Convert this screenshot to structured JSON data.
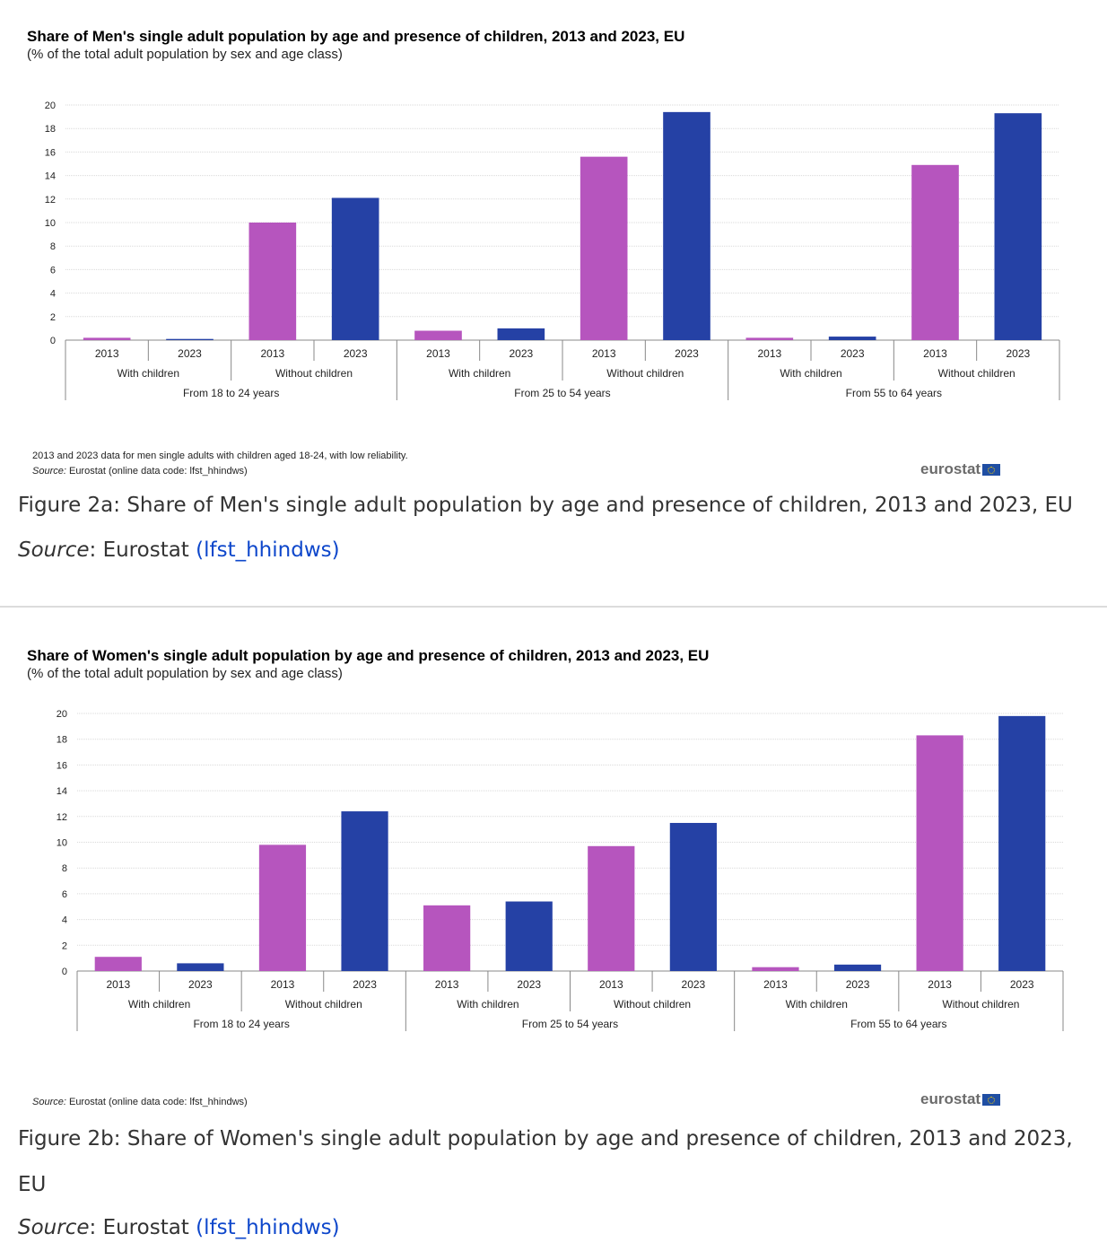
{
  "figures": [
    {
      "title": "Share of Men's single adult population by age and presence of children, 2013 and 2023, EU",
      "subtitle": "(% of the total adult population by sex and age class)",
      "note": "2013 and 2023 data for men single adults with children aged 18-24, with low reliability.",
      "source_label": "Source:",
      "source_text": " Eurostat (online data code: lfst_hhindws)",
      "logo": "eurostat",
      "caption": "Figure 2a: Share of Men's single adult population by age and presence of children, 2013 and 2023, EU",
      "caption_source_label": "Source",
      "caption_source_text": ": Eurostat ",
      "caption_source_link": "(lfst_hhindws)"
    },
    {
      "title": "Share of Women's single adult population by age and presence of children, 2013 and 2023, EU",
      "subtitle": "(% of the total adult population by sex and age class)",
      "note": "",
      "source_label": "Source:",
      "source_text": " Eurostat (online data code: lfst_hhindws)",
      "logo": "eurostat",
      "caption": "Figure 2b: Share of Women's single adult population by age and presence of children, 2013 and 2023, EU",
      "caption_source_label": "Source",
      "caption_source_text": ": Eurostat ",
      "caption_source_link": "(lfst_hhindws)"
    }
  ],
  "colors": {
    "bar_2013": "#b655be",
    "bar_2023": "#2541a5",
    "grid": "#d9d9d9",
    "axis": "#888888",
    "text": "#222222",
    "link": "#0e47cb"
  },
  "chart_data": [
    {
      "type": "bar",
      "title": "Share of Men's single adult population by age and presence of children, 2013 and 2023, EU",
      "ylim": [
        0,
        20
      ],
      "yticks": [
        0,
        2,
        4,
        6,
        8,
        10,
        12,
        14,
        16,
        18,
        20
      ],
      "grid": true,
      "groups": [
        "From 18 to 24 years",
        "From 25 to 54 years",
        "From 55 to 64 years"
      ],
      "subgroups": [
        "With children",
        "Without children"
      ],
      "categories": [
        "2013",
        "2023",
        "2013",
        "2023",
        "2013",
        "2023",
        "2013",
        "2023",
        "2013",
        "2023",
        "2013",
        "2023"
      ],
      "values": [
        0.2,
        0.1,
        10.0,
        12.1,
        0.8,
        1.0,
        15.6,
        19.4,
        0.2,
        0.3,
        14.9,
        19.3
      ]
    },
    {
      "type": "bar",
      "title": "Share of Women's single adult population by age and presence of children, 2013 and 2023, EU",
      "ylim": [
        0,
        20
      ],
      "yticks": [
        0,
        2,
        4,
        6,
        8,
        10,
        12,
        14,
        16,
        18,
        20
      ],
      "grid": true,
      "groups": [
        "From 18 to 24 years",
        "From 25 to 54 years",
        "From 55 to 64 years"
      ],
      "subgroups": [
        "With children",
        "Without children"
      ],
      "categories": [
        "2013",
        "2023",
        "2013",
        "2023",
        "2013",
        "2023",
        "2013",
        "2023",
        "2013",
        "2023",
        "2013",
        "2023"
      ],
      "values": [
        1.1,
        0.6,
        9.8,
        12.4,
        5.1,
        5.4,
        9.7,
        11.5,
        0.3,
        0.5,
        18.3,
        19.8
      ]
    }
  ]
}
